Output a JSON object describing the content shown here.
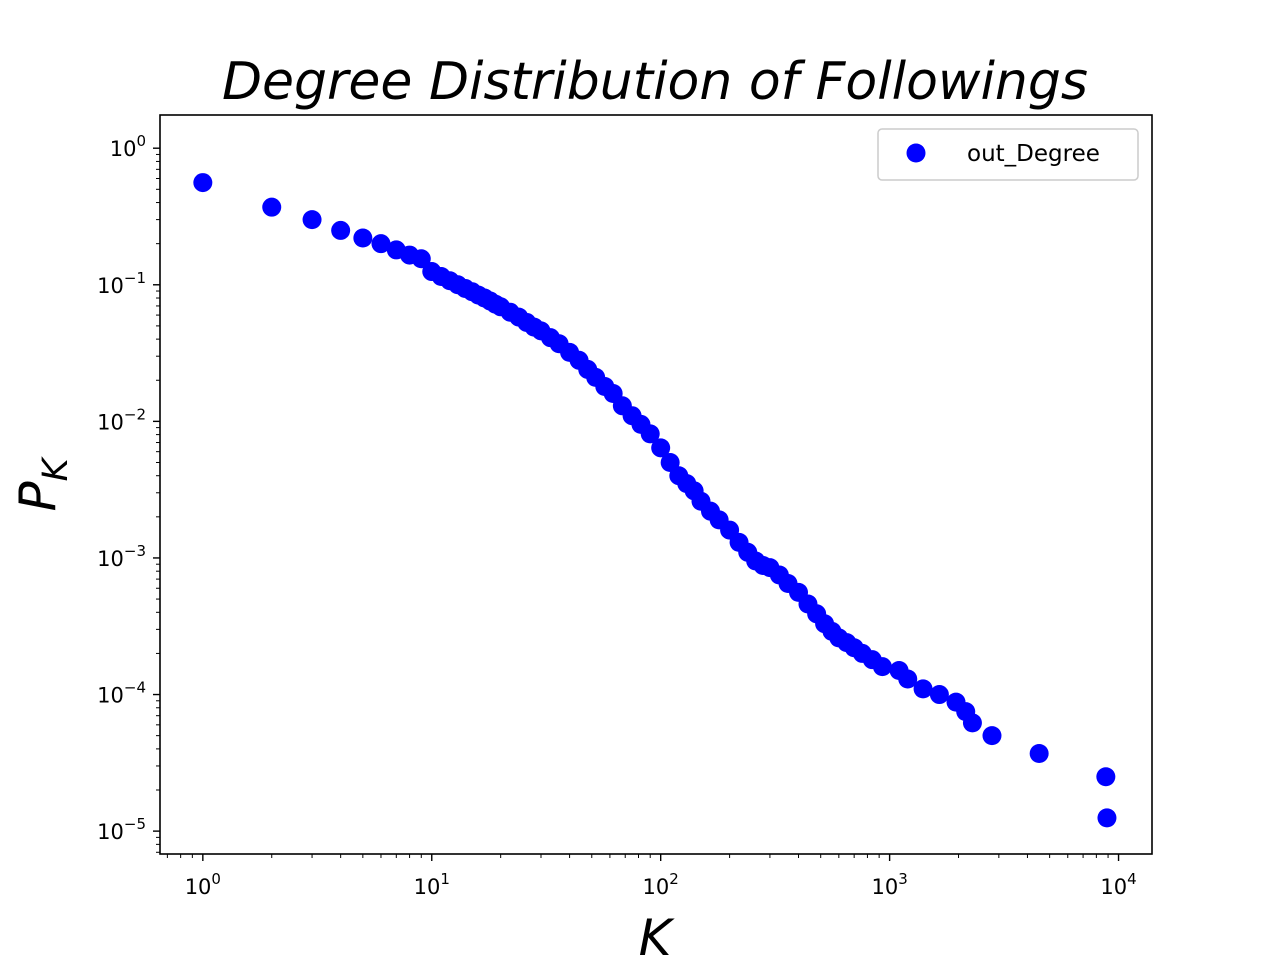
{
  "chart_data": {
    "type": "scatter",
    "title": "Degree Distribution of Followings",
    "xlabel": "K",
    "ylabel": {
      "base": "P",
      "sub": "K"
    },
    "xscale": "log",
    "yscale": "log",
    "xlim": [
      0.65,
      14000
    ],
    "ylim": [
      6.8e-06,
      1.75
    ],
    "x_ticks": [
      {
        "base": "10",
        "exp": "0",
        "value": 1
      },
      {
        "base": "10",
        "exp": "1",
        "value": 10
      },
      {
        "base": "10",
        "exp": "2",
        "value": 100
      },
      {
        "base": "10",
        "exp": "3",
        "value": 1000
      },
      {
        "base": "10",
        "exp": "4",
        "value": 10000
      }
    ],
    "y_ticks": [
      {
        "base": "10",
        "exp": "0",
        "value": 1
      },
      {
        "base": "10",
        "exp": "−1",
        "value": 0.1
      },
      {
        "base": "10",
        "exp": "−2",
        "value": 0.01
      },
      {
        "base": "10",
        "exp": "−3",
        "value": 0.001
      },
      {
        "base": "10",
        "exp": "−4",
        "value": 0.0001
      },
      {
        "base": "10",
        "exp": "−5",
        "value": 1e-05
      }
    ],
    "grid": false,
    "legend": {
      "position": "top-right",
      "entries": [
        "out_Degree"
      ]
    },
    "series": [
      {
        "name": "out_Degree",
        "color": "#0000ff",
        "points": [
          [
            1,
            0.56
          ],
          [
            2,
            0.37
          ],
          [
            3,
            0.3
          ],
          [
            4,
            0.25
          ],
          [
            5,
            0.22
          ],
          [
            6,
            0.2
          ],
          [
            7,
            0.18
          ],
          [
            8,
            0.165
          ],
          [
            9,
            0.155
          ],
          [
            10,
            0.125
          ],
          [
            11,
            0.115
          ],
          [
            12,
            0.107
          ],
          [
            13,
            0.1
          ],
          [
            14,
            0.094
          ],
          [
            15,
            0.089
          ],
          [
            16,
            0.084
          ],
          [
            17,
            0.08
          ],
          [
            18,
            0.076
          ],
          [
            19,
            0.072
          ],
          [
            20,
            0.069
          ],
          [
            22,
            0.063
          ],
          [
            24,
            0.058
          ],
          [
            26,
            0.053
          ],
          [
            28,
            0.049
          ],
          [
            30,
            0.046
          ],
          [
            33,
            0.041
          ],
          [
            36,
            0.037
          ],
          [
            40,
            0.032
          ],
          [
            44,
            0.028
          ],
          [
            48,
            0.024
          ],
          [
            52,
            0.021
          ],
          [
            57,
            0.018
          ],
          [
            62,
            0.016
          ],
          [
            68,
            0.013
          ],
          [
            75,
            0.011
          ],
          [
            82,
            0.0095
          ],
          [
            90,
            0.0081
          ],
          [
            100,
            0.0064
          ],
          [
            110,
            0.005
          ],
          [
            120,
            0.004
          ],
          [
            130,
            0.0035
          ],
          [
            140,
            0.0031
          ],
          [
            150,
            0.0026
          ],
          [
            165,
            0.0022
          ],
          [
            180,
            0.0019
          ],
          [
            200,
            0.0016
          ],
          [
            220,
            0.0013
          ],
          [
            240,
            0.0011
          ],
          [
            260,
            0.00095
          ],
          [
            280,
            0.00088
          ],
          [
            300,
            0.00085
          ],
          [
            330,
            0.00075
          ],
          [
            360,
            0.00065
          ],
          [
            400,
            0.00056
          ],
          [
            440,
            0.00046
          ],
          [
            480,
            0.00039
          ],
          [
            520,
            0.00033
          ],
          [
            560,
            0.00029
          ],
          [
            600,
            0.00026
          ],
          [
            650,
            0.00024
          ],
          [
            700,
            0.00022
          ],
          [
            760,
            0.0002
          ],
          [
            840,
            0.00018
          ],
          [
            930,
            0.00016
          ],
          [
            1100,
            0.00015
          ],
          [
            1200,
            0.00013
          ],
          [
            1400,
            0.00011
          ],
          [
            1650,
            0.0001
          ],
          [
            1950,
            8.8e-05
          ],
          [
            2150,
            7.5e-05
          ],
          [
            2300,
            6.2e-05
          ],
          [
            2800,
            5e-05
          ],
          [
            4500,
            3.7e-05
          ],
          [
            8800,
            2.5e-05
          ],
          [
            8900,
            1.25e-05
          ]
        ]
      }
    ]
  }
}
